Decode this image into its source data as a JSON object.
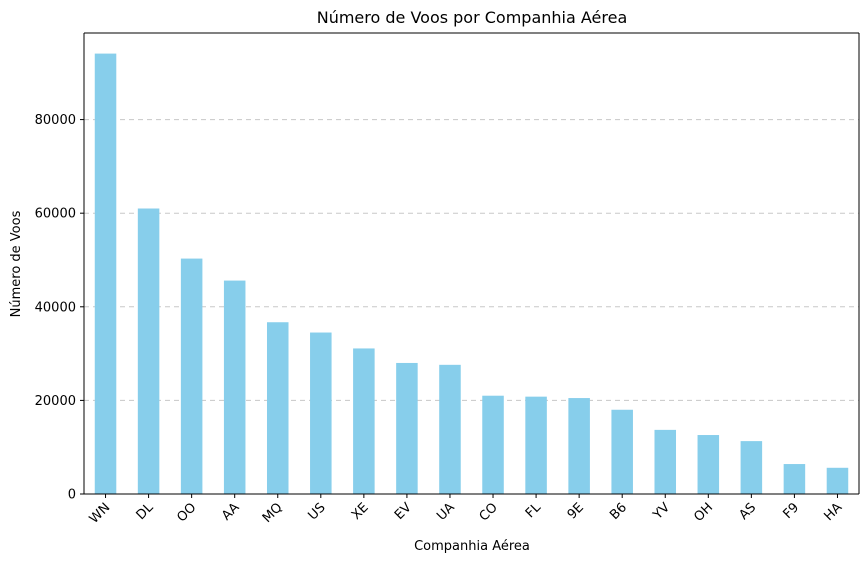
{
  "chart_data": {
    "type": "bar",
    "title": "Número de Voos por Companhia Aérea",
    "xlabel": "Companhia Aérea",
    "ylabel": "Número de Voos",
    "categories": [
      "WN",
      "DL",
      "OO",
      "AA",
      "MQ",
      "US",
      "XE",
      "EV",
      "UA",
      "CO",
      "FL",
      "9E",
      "B6",
      "YV",
      "OH",
      "AS",
      "F9",
      "HA"
    ],
    "values": [
      94100,
      61000,
      50300,
      45600,
      36700,
      34500,
      31100,
      28000,
      27600,
      21000,
      20800,
      20500,
      18000,
      13700,
      12600,
      11300,
      6400,
      5600
    ],
    "ylim": [
      0,
      98500
    ],
    "yticks": [
      0,
      20000,
      40000,
      60000,
      80000
    ],
    "grid": "y dashed",
    "bar_color": "#87ceeb",
    "grid_color": "#c8c8c8"
  }
}
